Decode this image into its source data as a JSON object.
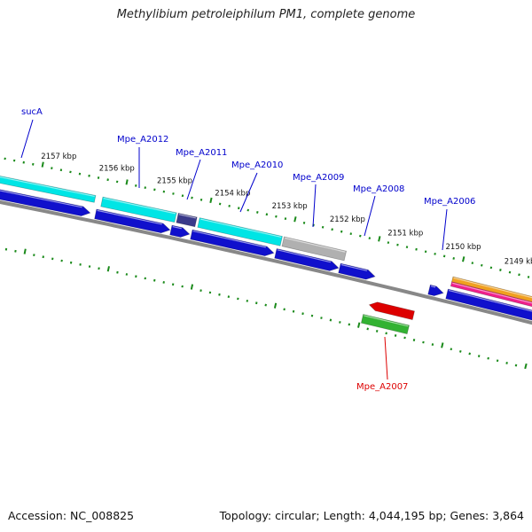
{
  "title": "Methylibium petroleiphilum PM1, complete genome",
  "footer": {
    "accession": "Accession: NC_008825",
    "summary": "Topology: circular; Length: 4,044,195 bp; Genes: 3,864"
  },
  "colors": {
    "backbone": "#888888",
    "tick": "#1a8a1a",
    "gene_label": "#0000cc",
    "highlight_label": "#dd0000",
    "cds_forward": "#1010cc",
    "cyan": "#00e5e5",
    "cyan_dark": "#00c8c8",
    "navy": "#3a3a8a",
    "gray": "#b0b0b0",
    "red": "#dd0000",
    "green": "#33b233",
    "orange": "#f0a020",
    "magenta": "#f0208c"
  },
  "kbp_labels": [
    "2157 kbp",
    "2156 kbp",
    "2155 kbp",
    "2154 kbp",
    "2153 kbp",
    "2152 kbp",
    "2151 kbp",
    "2150 kbp",
    "2149 kbp"
  ],
  "genes": [
    {
      "name": "sucA",
      "color": "gene_label"
    },
    {
      "name": "Mpe_A2012",
      "color": "gene_label"
    },
    {
      "name": "Mpe_A2011",
      "color": "gene_label"
    },
    {
      "name": "Mpe_A2010",
      "color": "gene_label"
    },
    {
      "name": "Mpe_A2009",
      "color": "gene_label"
    },
    {
      "name": "Mpe_A2008",
      "color": "gene_label"
    },
    {
      "name": "Mpe_A2006",
      "color": "gene_label"
    },
    {
      "name": "Mpe_A2007",
      "color": "highlight_label"
    }
  ]
}
